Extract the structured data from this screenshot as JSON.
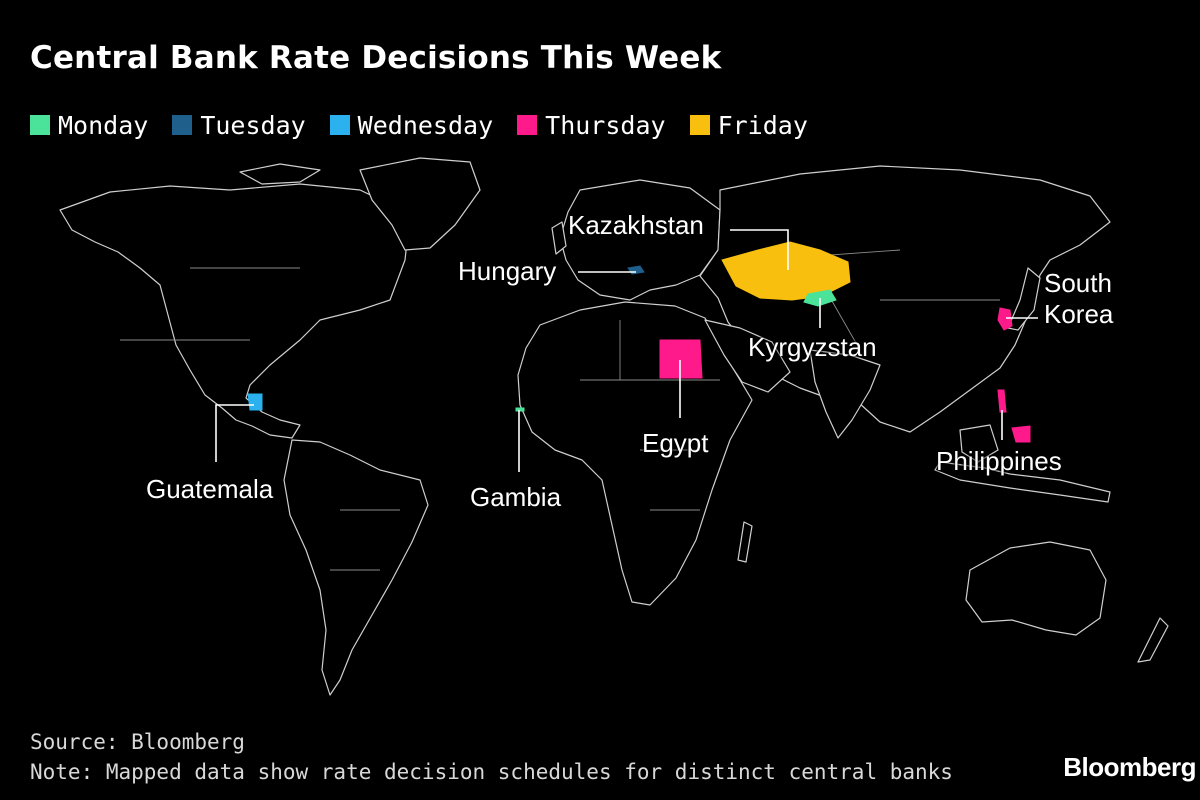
{
  "title": "Central Bank Rate Decisions This Week",
  "legend": [
    {
      "label": "Monday",
      "color": "#4be39a"
    },
    {
      "label": "Tuesday",
      "color": "#1f5f8c"
    },
    {
      "label": "Wednesday",
      "color": "#2bb2ee"
    },
    {
      "label": "Thursday",
      "color": "#ff1a8c"
    },
    {
      "label": "Friday",
      "color": "#f8bf0f"
    }
  ],
  "countries": {
    "kazakhstan": {
      "label": "Kazakhstan",
      "day": "Friday",
      "color": "#f8bf0f"
    },
    "hungary": {
      "label": "Hungary",
      "day": "Tuesday",
      "color": "#1f5f8c"
    },
    "south_korea": {
      "label_line1": "South",
      "label_line2": "Korea",
      "day": "Thursday",
      "color": "#ff1a8c"
    },
    "kyrgyzstan": {
      "label": "Kyrgyzstan",
      "day": "Monday",
      "color": "#4be39a"
    },
    "egypt": {
      "label": "Egypt",
      "day": "Thursday",
      "color": "#ff1a8c"
    },
    "philippines": {
      "label": "Philippines",
      "day": "Thursday",
      "color": "#ff1a8c"
    },
    "guatemala": {
      "label": "Guatemala",
      "day": "Wednesday",
      "color": "#2bb2ee"
    },
    "gambia": {
      "label": "Gambia",
      "day": "Monday",
      "color": "#4be39a"
    }
  },
  "footer": {
    "source": "Source: Bloomberg",
    "note": "Note: Mapped data show rate decision schedules for distinct central banks"
  },
  "brand": "Bloomberg"
}
